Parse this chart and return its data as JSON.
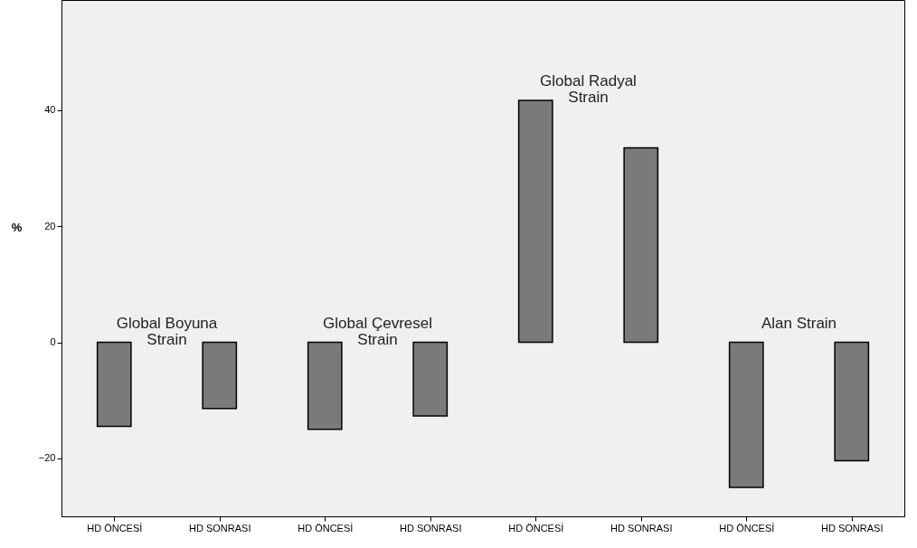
{
  "chart_data": {
    "type": "bar",
    "ylabel": "%",
    "categories": [
      "HD ÖNCESİ",
      "HD SONRASI",
      "HD ÖNCESİ",
      "HD SONRASI",
      "HD ÖNCESİ",
      "HD SONRASI",
      "HD ÖNCESİ",
      "HD SONRASI"
    ],
    "values": [
      -14.5,
      -11.4,
      -15,
      -12.7,
      41.7,
      33.5,
      -25,
      -20.4
    ],
    "color": "#7a7a7a",
    "ylim": [
      -30,
      59
    ],
    "yticks": [
      -20,
      0,
      20,
      40
    ],
    "grid": false,
    "annotations": [
      "Global Boyuna\nStrain",
      "Global Çevresel\nStrain",
      "Global Radyal\nStrain",
      "Alan Strain"
    ]
  }
}
